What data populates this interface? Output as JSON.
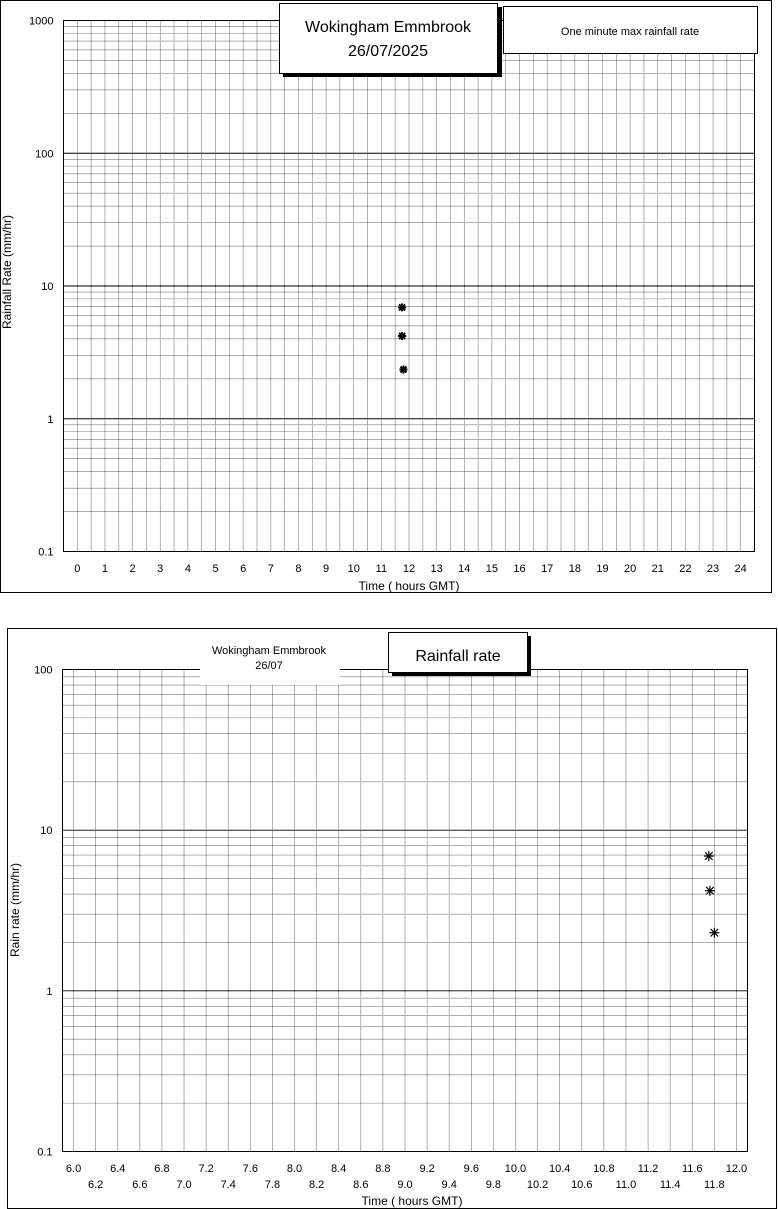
{
  "chart_data": [
    {
      "type": "scatter",
      "title": "Wokingham Emmbrook",
      "subtitle": "26/07/2025",
      "legend": "One minute max rainfall rate",
      "xlabel": "Time ( hours GMT)",
      "ylabel": "Rainfall Rate  (mm/hr)",
      "xlim": [
        -0.5,
        24.5
      ],
      "ylim": [
        0.1,
        1000
      ],
      "yscale": "log",
      "grid": true,
      "x_ticks": [
        "0",
        "1",
        "2",
        "3",
        "4",
        "5",
        "6",
        "7",
        "8",
        "9",
        "10",
        "11",
        "12",
        "13",
        "14",
        "15",
        "16",
        "17",
        "18",
        "19",
        "20",
        "21",
        "22",
        "23",
        "24"
      ],
      "y_ticks": [
        "1000",
        "100",
        "10",
        "1",
        "0.1"
      ],
      "points": [
        {
          "x": 11.75,
          "y": 6.9
        },
        {
          "x": 11.75,
          "y": 4.2
        },
        {
          "x": 11.8,
          "y": 2.35
        }
      ]
    },
    {
      "type": "scatter",
      "title": "Rainfall rate",
      "subtitle_lines": [
        "Wokingham Emmbrook",
        "26/07"
      ],
      "xlabel": "Time ( hours GMT)",
      "ylabel": "Rain rate (mm/hr)",
      "xlim": [
        5.9,
        12.1
      ],
      "ylim": [
        0.1,
        100
      ],
      "yscale": "log",
      "grid": true,
      "x_ticks_top": [
        "6.0",
        "6.4",
        "6.8",
        "7.2",
        "7.6",
        "8.0",
        "8.4",
        "8.8",
        "9.2",
        "9.6",
        "10.0",
        "10.4",
        "10.8",
        "11.2",
        "11.6",
        "12.0"
      ],
      "x_ticks_bottom": [
        "6.2",
        "6.6",
        "7.0",
        "7.4",
        "7.8",
        "8.2",
        "8.6",
        "9.0",
        "9.4",
        "9.8",
        "10.2",
        "10.6",
        "11.0",
        "11.4",
        "11.8"
      ],
      "y_ticks": [
        "100",
        "10",
        "1",
        "0.1"
      ],
      "points": [
        {
          "x": 11.75,
          "y": 6.9
        },
        {
          "x": 11.76,
          "y": 4.2
        },
        {
          "x": 11.8,
          "y": 2.3
        }
      ]
    }
  ]
}
